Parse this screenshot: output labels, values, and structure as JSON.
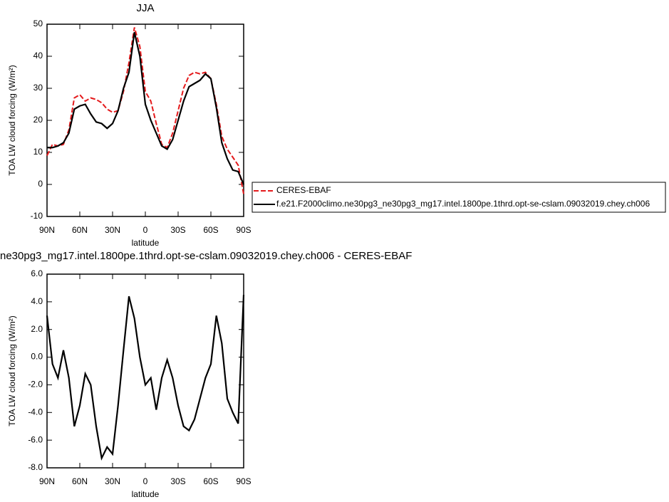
{
  "chart_data": [
    {
      "type": "line",
      "title": "JJA",
      "x_label": "latitude",
      "y_label": "TOA LW cloud forcing (W/m²)",
      "x": [
        90,
        85,
        80,
        75,
        70,
        65,
        60,
        55,
        50,
        45,
        40,
        35,
        30,
        25,
        20,
        15,
        10,
        5,
        0,
        -5,
        -10,
        -15,
        -20,
        -25,
        -30,
        -35,
        -40,
        -45,
        -50,
        -55,
        -60,
        -65,
        -70,
        -75,
        -80,
        -85,
        -90
      ],
      "series": [
        {
          "name": "CERES-EBAF",
          "color": "#e41a1c",
          "dash": true,
          "values": [
            9,
            12.5,
            12,
            12.5,
            17,
            27,
            28,
            26,
            27,
            26.5,
            25.5,
            23.5,
            22.5,
            23,
            29,
            38,
            49,
            43,
            29,
            26,
            19,
            12.5,
            11.5,
            16,
            23,
            30,
            34,
            35,
            34.5,
            35,
            33,
            25,
            15,
            11,
            8.5,
            6,
            -3
          ]
        },
        {
          "name": "f.e21.F2000climo.ne30pg3_ne30pg3_mg17.intel.1800pe.1thrd.opt-se-cslam.09032019.chey.ch006",
          "color": "#000000",
          "dash": false,
          "values": [
            11.5,
            11.5,
            12,
            13,
            16,
            23.5,
            24.5,
            25,
            22,
            19.5,
            19,
            17.5,
            19,
            23,
            30,
            35,
            47.5,
            40,
            25,
            20,
            16,
            12,
            11,
            14,
            20,
            26,
            30.5,
            31.5,
            32.5,
            34.5,
            33,
            24,
            13,
            8,
            4.5,
            4,
            0
          ]
        }
      ],
      "xlim": [
        90,
        -90
      ],
      "xticks": [
        {
          "value": 90,
          "label": "90N"
        },
        {
          "value": 60,
          "label": "60N"
        },
        {
          "value": 30,
          "label": "30N"
        },
        0,
        {
          "value": -30,
          "label": "30S"
        },
        {
          "value": -60,
          "label": "60S"
        },
        {
          "value": -90,
          "label": "90S"
        }
      ],
      "ylim": [
        -10,
        50
      ],
      "yticks": [
        -10,
        0,
        10,
        20,
        30,
        40,
        50
      ],
      "legend": "right"
    },
    {
      "type": "line",
      "title": "ne30pg3_mg17.intel.1800pe.1thrd.opt-se-cslam.09032019.chey.ch006 - CERES-EBAF",
      "x_label": "latitude",
      "y_label": "TOA LW cloud forcing (W/m²)",
      "x": [
        90,
        85,
        80,
        75,
        70,
        65,
        60,
        55,
        50,
        45,
        40,
        35,
        30,
        25,
        20,
        15,
        10,
        5,
        0,
        -5,
        -10,
        -15,
        -20,
        -25,
        -30,
        -35,
        -40,
        -45,
        -50,
        -55,
        -60,
        -65,
        -70,
        -75,
        -80,
        -85,
        -90
      ],
      "series": [
        {
          "color": "#000000",
          "dash": false,
          "values": [
            3.0,
            -0.5,
            -1.5,
            0.5,
            -1.5,
            -5.0,
            -3.5,
            -1.2,
            -2.0,
            -5.0,
            -7.3,
            -6.5,
            -7.0,
            -3.5,
            0.5,
            4.4,
            2.8,
            0.0,
            -2.0,
            -1.5,
            -3.8,
            -1.5,
            -0.2,
            -1.5,
            -3.5,
            -5.0,
            -5.3,
            -4.5,
            -3.0,
            -1.5,
            -0.5,
            3.0,
            1.0,
            -3.0,
            -4.0,
            -4.8,
            4.5
          ]
        }
      ],
      "xlim": [
        90,
        -90
      ],
      "xticks": [
        {
          "value": 90,
          "label": "90N"
        },
        {
          "value": 60,
          "label": "60N"
        },
        {
          "value": 30,
          "label": "30N"
        },
        0,
        {
          "value": -30,
          "label": "30S"
        },
        {
          "value": -60,
          "label": "60S"
        },
        {
          "value": -90,
          "label": "90S"
        }
      ],
      "ylim": [
        -8,
        6
      ],
      "yticks": [
        {
          "value": -8,
          "label": "-8.0"
        },
        {
          "value": -6,
          "label": "-6.0"
        },
        {
          "value": -4,
          "label": "-4.0"
        },
        {
          "value": -2,
          "label": "-2.0"
        },
        {
          "value": 0,
          "label": "0.0"
        },
        {
          "value": 2,
          "label": "2.0"
        },
        {
          "value": 4,
          "label": "4.0"
        },
        {
          "value": 6,
          "label": "6.0"
        }
      ]
    }
  ]
}
